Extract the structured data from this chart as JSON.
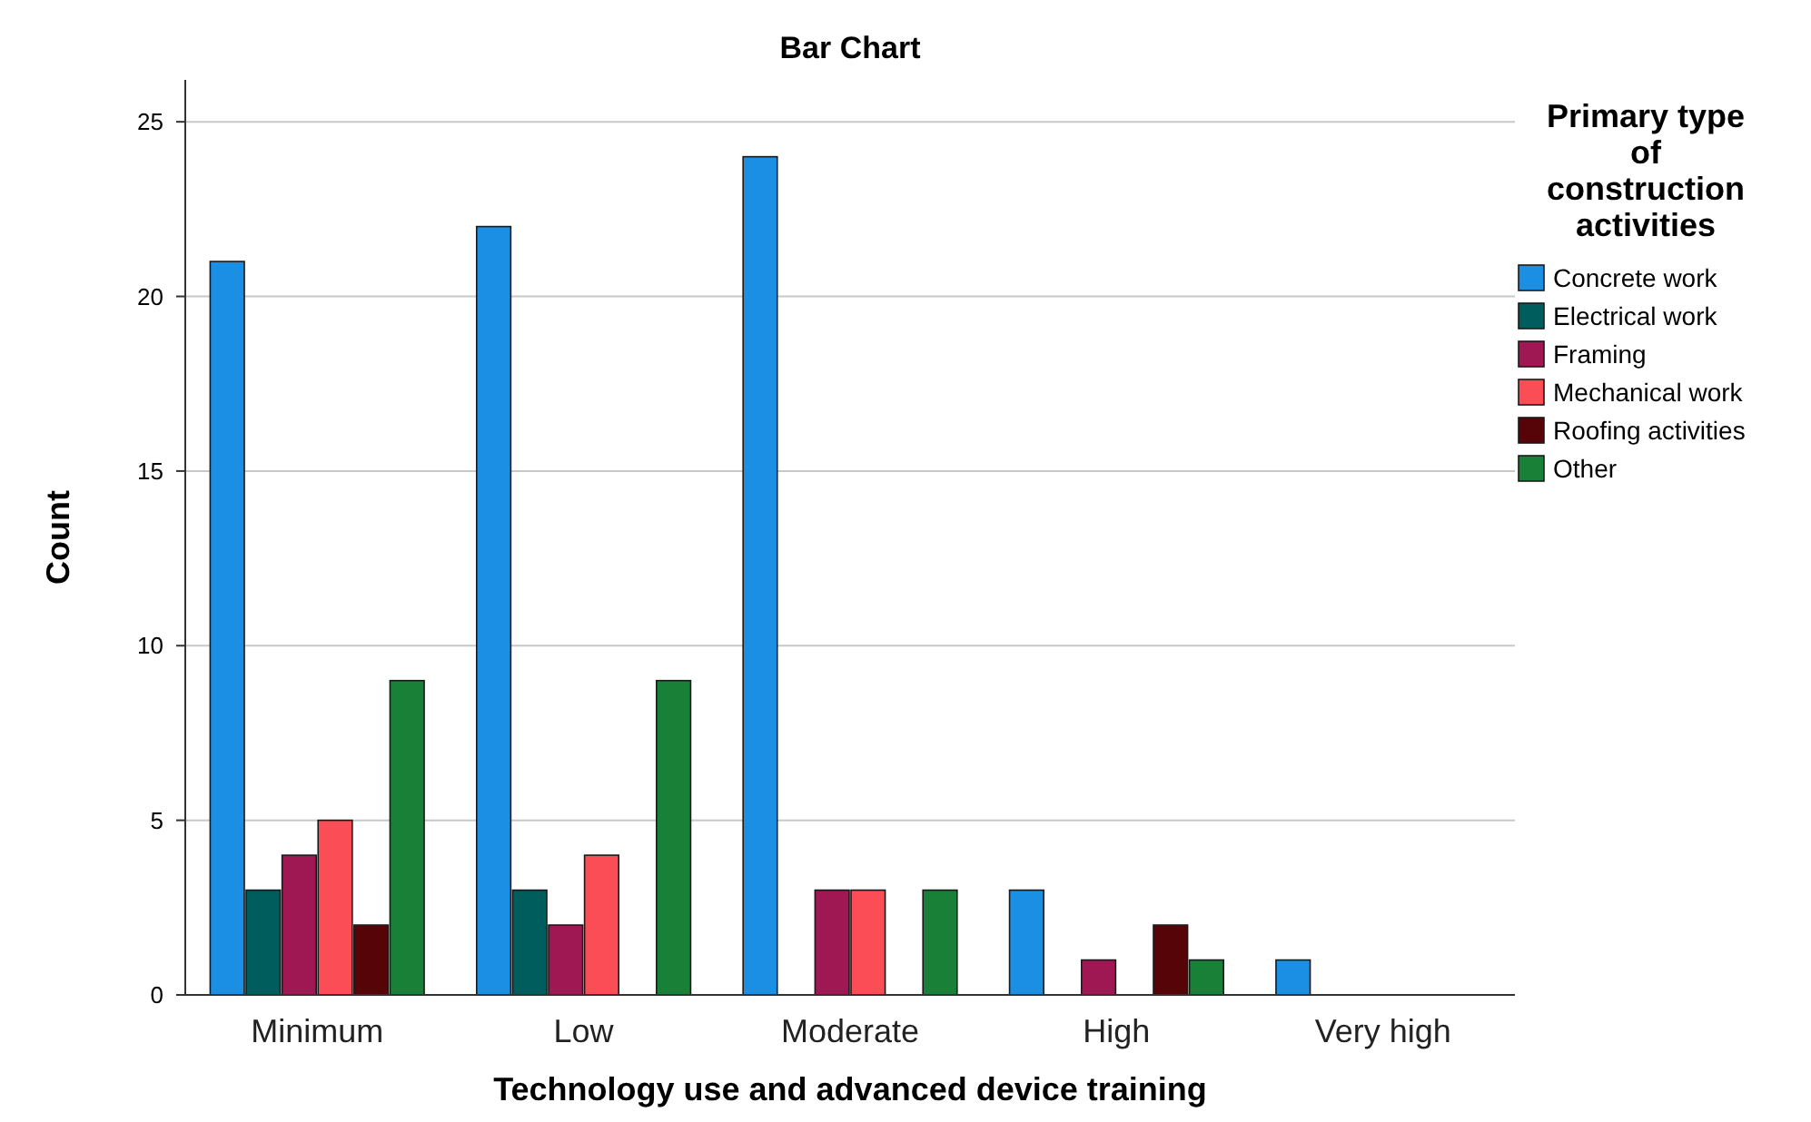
{
  "chart_data": {
    "type": "bar",
    "title": "Bar Chart",
    "xlabel": "Technology use and advanced device training",
    "ylabel": "Count",
    "legend_title": "Primary type of construction activities",
    "categories": [
      "Minimum",
      "Low",
      "Moderate",
      "High",
      "Very high"
    ],
    "series": [
      {
        "name": "Concrete work",
        "color": "#1a8fe3",
        "values": [
          21,
          22,
          24,
          3,
          1
        ]
      },
      {
        "name": "Electrical work",
        "color": "#005d5d",
        "values": [
          3,
          3,
          null,
          null,
          null
        ]
      },
      {
        "name": "Framing",
        "color": "#9f1853",
        "values": [
          4,
          2,
          3,
          1,
          null
        ]
      },
      {
        "name": "Mechanical work",
        "color": "#fa4d56",
        "values": [
          5,
          4,
          3,
          null,
          null
        ]
      },
      {
        "name": "Roofing activities",
        "color": "#570408",
        "values": [
          2,
          null,
          null,
          2,
          null
        ]
      },
      {
        "name": "Other",
        "color": "#198038",
        "values": [
          9,
          9,
          3,
          1,
          null
        ]
      }
    ],
    "ylim": [
      0,
      26.2
    ],
    "yticks": [
      0,
      5,
      10,
      15,
      20,
      25
    ],
    "grid": "y",
    "legend": "right"
  }
}
